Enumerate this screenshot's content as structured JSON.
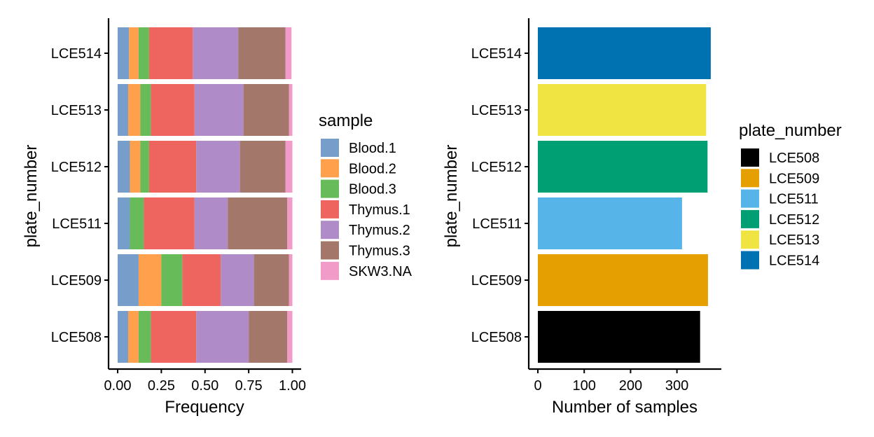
{
  "chart_data": [
    {
      "type": "bar",
      "orientation": "horizontal",
      "stacked": true,
      "xlabel": "Frequency",
      "ylabel": "plate_number",
      "xlim": [
        0,
        1
      ],
      "xticks": [
        "0.00",
        "0.25",
        "0.50",
        "0.75",
        "1.00"
      ],
      "categories": [
        "LCE508",
        "LCE509",
        "LCE511",
        "LCE512",
        "LCE513",
        "LCE514"
      ],
      "legend_title": "sample",
      "legend_position": "right",
      "grid": false,
      "series": [
        {
          "name": "Blood.1",
          "color": "#779ECB",
          "values": [
            0.06,
            0.12,
            0.07,
            0.07,
            0.06,
            0.065
          ]
        },
        {
          "name": "Blood.2",
          "color": "#FFA04D",
          "values": [
            0.06,
            0.13,
            0.0,
            0.06,
            0.07,
            0.055
          ]
        },
        {
          "name": "Blood.3",
          "color": "#68BB59",
          "values": [
            0.07,
            0.12,
            0.08,
            0.05,
            0.06,
            0.06
          ]
        },
        {
          "name": "Thymus.1",
          "color": "#EE6560",
          "values": [
            0.26,
            0.22,
            0.29,
            0.27,
            0.25,
            0.25
          ]
        },
        {
          "name": "Thymus.2",
          "color": "#AF8BC7",
          "values": [
            0.3,
            0.19,
            0.19,
            0.25,
            0.28,
            0.26
          ]
        },
        {
          "name": "Thymus.3",
          "color": "#A3786B",
          "values": [
            0.22,
            0.2,
            0.34,
            0.26,
            0.26,
            0.27
          ]
        },
        {
          "name": "SKW3.NA",
          "color": "#F09BC8",
          "values": [
            0.03,
            0.02,
            0.03,
            0.04,
            0.02,
            0.035
          ]
        }
      ]
    },
    {
      "type": "bar",
      "orientation": "horizontal",
      "xlabel": "Number of samples",
      "ylabel": "plate_number",
      "xlim": [
        0,
        380
      ],
      "xticks": [
        "0",
        "100",
        "200",
        "300"
      ],
      "categories": [
        "LCE508",
        "LCE509",
        "LCE511",
        "LCE512",
        "LCE513",
        "LCE514"
      ],
      "values": [
        350,
        367,
        311,
        366,
        363,
        373
      ],
      "colors": [
        "#000000",
        "#E69F00",
        "#56B4E9",
        "#009E73",
        "#F0E442",
        "#0072B2"
      ],
      "legend_title": "plate_number",
      "legend_position": "right",
      "grid": false
    }
  ]
}
